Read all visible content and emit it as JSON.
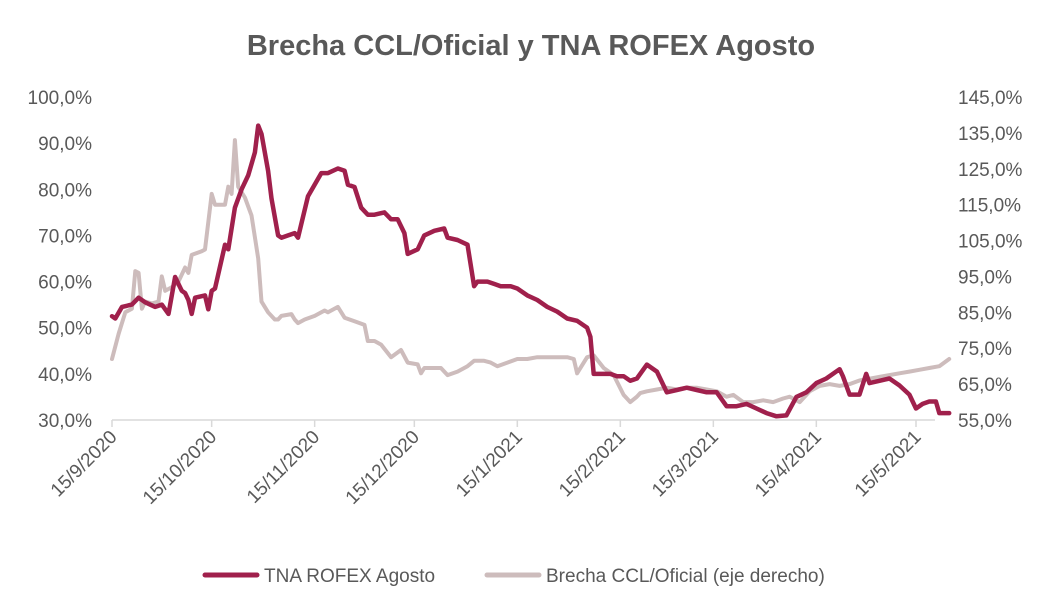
{
  "chart_data": {
    "type": "line",
    "title": "Brecha CCL/Oficial y TNA ROFEX Agosto",
    "x_ticks": [
      "15/9/2020",
      "15/10/2020",
      "15/11/2020",
      "15/12/2020",
      "15/1/2021",
      "15/2/2021",
      "15/3/2021",
      "15/4/2021",
      "15/5/2021"
    ],
    "y_left": {
      "min": 30,
      "max": 100,
      "step": 10,
      "tick_labels": [
        "30,0%",
        "40,0%",
        "50,0%",
        "60,0%",
        "70,0%",
        "80,0%",
        "90,0%",
        "100,0%"
      ]
    },
    "y_right": {
      "min": 55,
      "max": 145,
      "step": 10,
      "tick_labels": [
        "55,0%",
        "65,0%",
        "75,0%",
        "85,0%",
        "95,0%",
        "105,0%",
        "115,0%",
        "125,0%",
        "135,0%",
        "145,0%"
      ]
    },
    "legend_position": "bottom",
    "grid": false,
    "series": [
      {
        "name": "TNA ROFEX Agosto",
        "axis": "left",
        "color": "#a0204c",
        "points": [
          [
            "2020-09-15",
            52.5
          ],
          [
            "2020-09-16",
            52.0
          ],
          [
            "2020-09-18",
            54.5
          ],
          [
            "2020-09-21",
            55.0
          ],
          [
            "2020-09-23",
            56.5
          ],
          [
            "2020-09-25",
            55.5
          ],
          [
            "2020-09-28",
            54.5
          ],
          [
            "2020-09-30",
            55.0
          ],
          [
            "2020-10-02",
            53.0
          ],
          [
            "2020-10-04",
            61.0
          ],
          [
            "2020-10-06",
            58.0
          ],
          [
            "2020-10-07",
            57.5
          ],
          [
            "2020-10-08",
            56.0
          ],
          [
            "2020-10-09",
            53.0
          ],
          [
            "2020-10-10",
            56.5
          ],
          [
            "2020-10-13",
            57.0
          ],
          [
            "2020-10-14",
            54.0
          ],
          [
            "2020-10-15",
            58.0
          ],
          [
            "2020-10-16",
            58.5
          ],
          [
            "2020-10-19",
            68.0
          ],
          [
            "2020-10-20",
            67.0
          ],
          [
            "2020-10-22",
            76.0
          ],
          [
            "2020-10-24",
            80.0
          ],
          [
            "2020-10-26",
            83.0
          ],
          [
            "2020-10-28",
            88.0
          ],
          [
            "2020-10-29",
            93.8
          ],
          [
            "2020-10-30",
            92.0
          ],
          [
            "2020-11-01",
            84.0
          ],
          [
            "2020-11-02",
            78.0
          ],
          [
            "2020-11-04",
            70.0
          ],
          [
            "2020-11-05",
            69.5
          ],
          [
            "2020-11-07",
            70.0
          ],
          [
            "2020-11-09",
            70.5
          ],
          [
            "2020-11-10",
            69.5
          ],
          [
            "2020-11-13",
            78.5
          ],
          [
            "2020-11-17",
            83.5
          ],
          [
            "2020-11-19",
            83.5
          ],
          [
            "2020-11-22",
            84.5
          ],
          [
            "2020-11-24",
            84.0
          ],
          [
            "2020-11-25",
            81.0
          ],
          [
            "2020-11-27",
            80.5
          ],
          [
            "2020-11-29",
            76.0
          ],
          [
            "2020-12-01",
            74.5
          ],
          [
            "2020-12-03",
            74.5
          ],
          [
            "2020-12-06",
            75.0
          ],
          [
            "2020-12-08",
            73.5
          ],
          [
            "2020-12-10",
            73.5
          ],
          [
            "2020-12-12",
            70.5
          ],
          [
            "2020-12-13",
            66.0
          ],
          [
            "2020-12-16",
            67.0
          ],
          [
            "2020-12-18",
            70.0
          ],
          [
            "2020-12-21",
            71.0
          ],
          [
            "2020-12-24",
            71.5
          ],
          [
            "2020-12-25",
            69.5
          ],
          [
            "2020-12-28",
            69.0
          ],
          [
            "2020-12-31",
            68.0
          ],
          [
            "2021-01-02",
            59.0
          ],
          [
            "2021-01-03",
            60.0
          ],
          [
            "2021-01-06",
            60.0
          ],
          [
            "2021-01-08",
            59.5
          ],
          [
            "2021-01-10",
            59.0
          ],
          [
            "2021-01-13",
            59.0
          ],
          [
            "2021-01-15",
            58.5
          ],
          [
            "2021-01-18",
            57.0
          ],
          [
            "2021-01-21",
            56.0
          ],
          [
            "2021-01-24",
            54.5
          ],
          [
            "2021-01-27",
            53.5
          ],
          [
            "2021-01-30",
            52.0
          ],
          [
            "2021-02-02",
            51.5
          ],
          [
            "2021-02-05",
            50.0
          ],
          [
            "2021-02-06",
            48.0
          ],
          [
            "2021-02-07",
            40.0
          ],
          [
            "2021-02-10",
            40.0
          ],
          [
            "2021-02-12",
            40.0
          ],
          [
            "2021-02-14",
            39.5
          ],
          [
            "2021-02-16",
            39.5
          ],
          [
            "2021-02-18",
            38.5
          ],
          [
            "2021-02-20",
            39.0
          ],
          [
            "2021-02-23",
            42.0
          ],
          [
            "2021-02-26",
            40.5
          ],
          [
            "2021-03-01",
            36.0
          ],
          [
            "2021-03-04",
            36.5
          ],
          [
            "2021-03-07",
            37.0
          ],
          [
            "2021-03-10",
            36.5
          ],
          [
            "2021-03-13",
            36.0
          ],
          [
            "2021-03-16",
            36.0
          ],
          [
            "2021-03-19",
            33.0
          ],
          [
            "2021-03-22",
            33.0
          ],
          [
            "2021-03-25",
            33.5
          ],
          [
            "2021-03-28",
            32.5
          ],
          [
            "2021-03-31",
            31.5
          ],
          [
            "2021-04-03",
            30.8
          ],
          [
            "2021-04-06",
            31.0
          ],
          [
            "2021-04-09",
            35.0
          ],
          [
            "2021-04-12",
            36.0
          ],
          [
            "2021-04-15",
            38.0
          ],
          [
            "2021-04-18",
            39.0
          ],
          [
            "2021-04-22",
            41.0
          ],
          [
            "2021-04-23",
            39.5
          ],
          [
            "2021-04-25",
            35.5
          ],
          [
            "2021-04-28",
            35.5
          ],
          [
            "2021-04-30",
            40.0
          ],
          [
            "2021-05-01",
            38.0
          ],
          [
            "2021-05-04",
            38.5
          ],
          [
            "2021-05-07",
            39.0
          ],
          [
            "2021-05-10",
            37.5
          ],
          [
            "2021-05-13",
            35.5
          ],
          [
            "2021-05-15",
            32.5
          ],
          [
            "2021-05-17",
            33.5
          ],
          [
            "2021-05-19",
            34.0
          ],
          [
            "2021-05-21",
            34.0
          ],
          [
            "2021-05-22",
            31.5
          ],
          [
            "2021-05-25",
            31.5
          ]
        ]
      },
      {
        "name": "Brecha CCL/Oficial (eje derecho)",
        "axis": "right",
        "color": "#cdbcbc",
        "points": [
          [
            "2020-09-15",
            72.0
          ],
          [
            "2020-09-17",
            79.0
          ],
          [
            "2020-09-19",
            85.0
          ],
          [
            "2020-09-21",
            86.0
          ],
          [
            "2020-09-22",
            96.5
          ],
          [
            "2020-09-23",
            96.0
          ],
          [
            "2020-09-24",
            86.0
          ],
          [
            "2020-09-25",
            88.0
          ],
          [
            "2020-09-27",
            87.5
          ],
          [
            "2020-09-29",
            88.0
          ],
          [
            "2020-09-30",
            95.0
          ],
          [
            "2020-10-01",
            91.0
          ],
          [
            "2020-10-03",
            92.0
          ],
          [
            "2020-10-05",
            93.5
          ],
          [
            "2020-10-07",
            97.5
          ],
          [
            "2020-10-08",
            96.0
          ],
          [
            "2020-10-09",
            101.0
          ],
          [
            "2020-10-12",
            102.0
          ],
          [
            "2020-10-13",
            102.5
          ],
          [
            "2020-10-15",
            118.0
          ],
          [
            "2020-10-16",
            115.0
          ],
          [
            "2020-10-19",
            115.0
          ],
          [
            "2020-10-20",
            120.0
          ],
          [
            "2020-10-21",
            118.0
          ],
          [
            "2020-10-22",
            133.0
          ],
          [
            "2020-10-23",
            120.0
          ],
          [
            "2020-10-25",
            117.0
          ],
          [
            "2020-10-27",
            112.0
          ],
          [
            "2020-10-29",
            100.0
          ],
          [
            "2020-10-30",
            88.0
          ],
          [
            "2020-11-01",
            85.0
          ],
          [
            "2020-11-03",
            83.0
          ],
          [
            "2020-11-04",
            83.0
          ],
          [
            "2020-11-05",
            84.0
          ],
          [
            "2020-11-08",
            84.5
          ],
          [
            "2020-11-09",
            83.0
          ],
          [
            "2020-11-10",
            82.0
          ],
          [
            "2020-11-12",
            83.0
          ],
          [
            "2020-11-15",
            84.0
          ],
          [
            "2020-11-18",
            85.5
          ],
          [
            "2020-11-19",
            85.0
          ],
          [
            "2020-11-22",
            86.5
          ],
          [
            "2020-11-24",
            83.5
          ],
          [
            "2020-11-27",
            82.5
          ],
          [
            "2020-11-30",
            81.5
          ],
          [
            "2020-12-01",
            77.0
          ],
          [
            "2020-12-03",
            77.0
          ],
          [
            "2020-12-05",
            76.0
          ],
          [
            "2020-12-08",
            72.5
          ],
          [
            "2020-12-11",
            74.5
          ],
          [
            "2020-12-13",
            71.0
          ],
          [
            "2020-12-16",
            70.5
          ],
          [
            "2020-12-17",
            68.0
          ],
          [
            "2020-12-18",
            69.5
          ],
          [
            "2020-12-20",
            69.5
          ],
          [
            "2020-12-23",
            69.5
          ],
          [
            "2020-12-25",
            67.5
          ],
          [
            "2020-12-28",
            68.5
          ],
          [
            "2020-12-31",
            70.0
          ],
          [
            "2021-01-02",
            71.5
          ],
          [
            "2021-01-05",
            71.5
          ],
          [
            "2021-01-07",
            71.0
          ],
          [
            "2021-01-09",
            70.0
          ],
          [
            "2021-01-12",
            71.0
          ],
          [
            "2021-01-15",
            72.0
          ],
          [
            "2021-01-18",
            72.0
          ],
          [
            "2021-01-21",
            72.5
          ],
          [
            "2021-01-24",
            72.5
          ],
          [
            "2021-01-27",
            72.5
          ],
          [
            "2021-01-30",
            72.5
          ],
          [
            "2021-02-01",
            72.0
          ],
          [
            "2021-02-02",
            68.0
          ],
          [
            "2021-02-05",
            72.5
          ],
          [
            "2021-02-07",
            73.0
          ],
          [
            "2021-02-10",
            69.5
          ],
          [
            "2021-02-13",
            67.5
          ],
          [
            "2021-02-16",
            62.0
          ],
          [
            "2021-02-18",
            60.0
          ],
          [
            "2021-02-20",
            61.5
          ],
          [
            "2021-02-21",
            62.5
          ],
          [
            "2021-02-23",
            63.0
          ],
          [
            "2021-02-26",
            63.5
          ],
          [
            "2021-03-01",
            64.0
          ],
          [
            "2021-03-04",
            63.5
          ],
          [
            "2021-03-07",
            64.0
          ],
          [
            "2021-03-10",
            64.0
          ],
          [
            "2021-03-13",
            63.5
          ],
          [
            "2021-03-16",
            63.0
          ],
          [
            "2021-03-19",
            61.5
          ],
          [
            "2021-03-21",
            62.0
          ],
          [
            "2021-03-24",
            60.0
          ],
          [
            "2021-03-27",
            60.0
          ],
          [
            "2021-03-30",
            60.5
          ],
          [
            "2021-04-02",
            60.0
          ],
          [
            "2021-04-05",
            61.0
          ],
          [
            "2021-04-07",
            61.5
          ],
          [
            "2021-04-10",
            60.0
          ],
          [
            "2021-04-13",
            63.0
          ],
          [
            "2021-04-16",
            64.5
          ],
          [
            "2021-04-19",
            65.0
          ],
          [
            "2021-04-22",
            64.5
          ],
          [
            "2021-04-25",
            65.0
          ],
          [
            "2021-04-28",
            66.0
          ],
          [
            "2021-05-01",
            66.5
          ],
          [
            "2021-05-04",
            67.0
          ],
          [
            "2021-05-07",
            67.5
          ],
          [
            "2021-05-10",
            68.0
          ],
          [
            "2021-05-13",
            68.5
          ],
          [
            "2021-05-16",
            69.0
          ],
          [
            "2021-05-19",
            69.5
          ],
          [
            "2021-05-22",
            70.0
          ],
          [
            "2021-05-25",
            72.0
          ]
        ]
      }
    ]
  }
}
